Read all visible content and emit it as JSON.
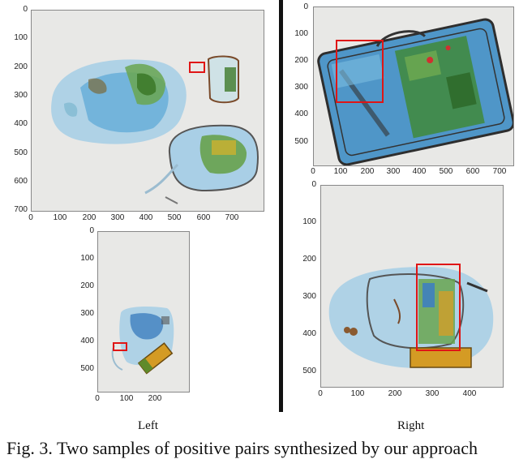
{
  "panels": {
    "left_top": {
      "yticks": [
        "0",
        "100",
        "200",
        "300",
        "400",
        "500",
        "600",
        "700"
      ],
      "xticks": [
        "0",
        "100",
        "200",
        "300",
        "400",
        "500",
        "600",
        "700"
      ]
    },
    "left_bottom": {
      "yticks": [
        "0",
        "100",
        "200",
        "300",
        "400",
        "500"
      ],
      "xticks": [
        "0",
        "100",
        "200"
      ]
    },
    "right_top": {
      "yticks": [
        "0",
        "100",
        "200",
        "300",
        "400",
        "500"
      ],
      "xticks": [
        "0",
        "100",
        "200",
        "300",
        "400",
        "500",
        "600",
        "700"
      ]
    },
    "right_bottom": {
      "yticks": [
        "0",
        "100",
        "200",
        "300",
        "400",
        "500"
      ],
      "xticks": [
        "0",
        "100",
        "200",
        "300",
        "400"
      ]
    }
  },
  "labels": {
    "left": "Left",
    "right": "Right"
  },
  "caption": "Fig. 3.  Two  samples  of  positive  pairs  synthesized  by  our  approach"
}
